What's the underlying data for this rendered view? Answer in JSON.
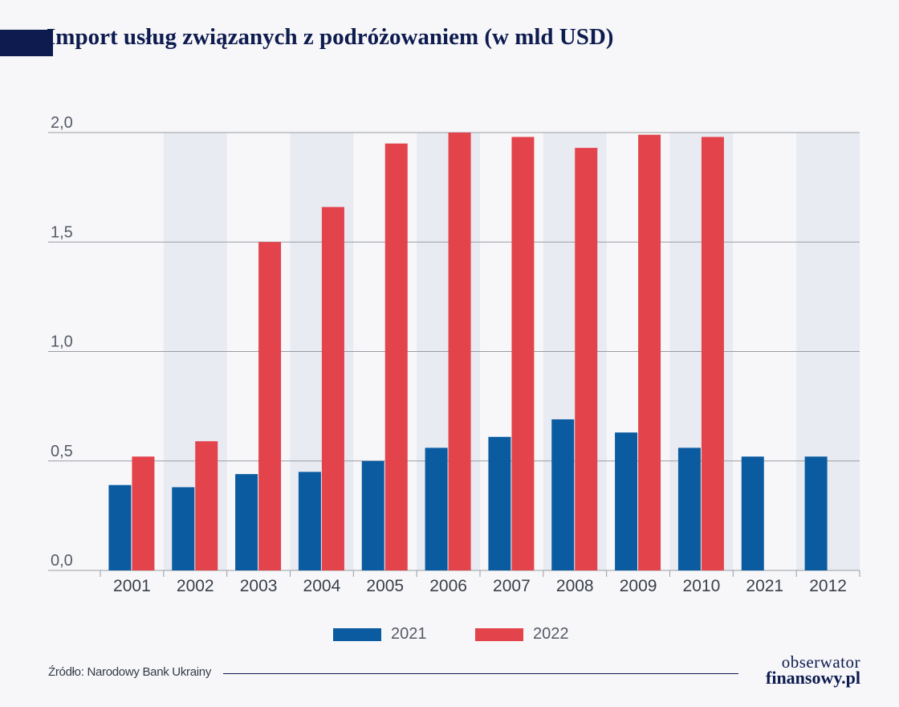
{
  "title": "Import usług związanych z podróżowaniem (w mld USD)",
  "source": "Źródło: Narodowy Bank Ukrainy",
  "logo": {
    "line1": "obserwator",
    "line2": "finansowy.pl"
  },
  "colors": {
    "series_2021": "#0a5ba0",
    "series_2022": "#e3434b",
    "band": "#e9ebf2",
    "grid": "#9a9ca4",
    "brand": "#0d1b4f"
  },
  "chart_data": {
    "type": "bar",
    "title": "Import usług związanych z podróżowaniem (w mld USD)",
    "categories": [
      "2001",
      "2002",
      "2003",
      "2004",
      "2005",
      "2006",
      "2007",
      "2008",
      "2009",
      "2010",
      "2021",
      "2012"
    ],
    "series": [
      {
        "name": "2021",
        "values": [
          0.39,
          0.38,
          0.44,
          0.45,
          0.5,
          0.56,
          0.61,
          0.69,
          0.63,
          0.56,
          0.52,
          0.52
        ]
      },
      {
        "name": "2022",
        "values": [
          0.52,
          0.59,
          1.5,
          1.66,
          1.95,
          2.0,
          1.98,
          1.93,
          1.99,
          1.98,
          null,
          null
        ]
      }
    ],
    "yticks": [
      "0,0",
      "0,5",
      "1,0",
      "1,5",
      "2,0"
    ],
    "ytick_values": [
      0,
      0.5,
      1.0,
      1.5,
      2.0
    ],
    "ylim": [
      0,
      2.0
    ],
    "grid": true,
    "legend_position": "bottom-center"
  }
}
